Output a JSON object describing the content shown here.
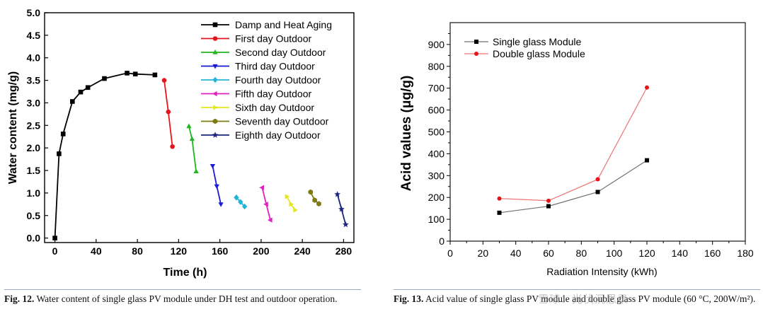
{
  "chart_data": [
    {
      "type": "line",
      "xlabel": "Time  (h)",
      "ylabel": "Water content  (mg/g)",
      "xlim": [
        -10,
        290
      ],
      "ylim": [
        -0.1,
        5.0
      ],
      "xticks": [
        "0",
        "40",
        "80",
        "120",
        "160",
        "200",
        "240",
        "280"
      ],
      "yticks": [
        "0.0",
        "0.5",
        "1.0",
        "1.5",
        "2.0",
        "2.5",
        "3.0",
        "3.5",
        "4.0",
        "4.5",
        "5.0"
      ],
      "legend_position": "top-right",
      "series": [
        {
          "name": "Damp and Heat Aging",
          "color": "#000000",
          "marker": "square",
          "x": [
            0,
            4,
            8,
            17,
            25,
            32,
            48,
            70,
            78,
            97
          ],
          "y": [
            0.0,
            1.87,
            2.31,
            3.03,
            3.24,
            3.34,
            3.54,
            3.66,
            3.64,
            3.62
          ]
        },
        {
          "name": "First day Outdoor",
          "color": "#e8141b",
          "marker": "circle",
          "x": [
            106,
            110,
            114
          ],
          "y": [
            3.5,
            2.8,
            2.03
          ]
        },
        {
          "name": "Second day Outdoor",
          "color": "#1fb61f",
          "marker": "triangle-up",
          "x": [
            130,
            133,
            137
          ],
          "y": [
            2.48,
            2.2,
            1.48
          ]
        },
        {
          "name": "Third day Outdoor",
          "color": "#1a1ad8",
          "marker": "triangle-down",
          "x": [
            153,
            157,
            161
          ],
          "y": [
            1.6,
            1.15,
            0.75
          ]
        },
        {
          "name": "Fourth day Outdoor",
          "color": "#22b4d8",
          "marker": "diamond",
          "x": [
            176,
            180,
            184
          ],
          "y": [
            0.9,
            0.8,
            0.7
          ]
        },
        {
          "name": "Fifth day Outdoor",
          "color": "#e020c0",
          "marker": "triangle-left",
          "x": [
            201,
            205,
            209
          ],
          "y": [
            1.12,
            0.75,
            0.4
          ]
        },
        {
          "name": "Sixth day Outdoor",
          "color": "#e6e61c",
          "marker": "triangle-right",
          "x": [
            225,
            229,
            233
          ],
          "y": [
            0.92,
            0.75,
            0.62
          ]
        },
        {
          "name": "Seventh day Outdoor",
          "color": "#7b7b12",
          "marker": "hexagon",
          "x": [
            248,
            252,
            256
          ],
          "y": [
            1.02,
            0.84,
            0.76
          ]
        },
        {
          "name": "Eighth day Outdoor",
          "color": "#1a237e",
          "marker": "star",
          "x": [
            274,
            278,
            282
          ],
          "y": [
            0.97,
            0.64,
            0.3
          ]
        }
      ]
    },
    {
      "type": "line",
      "xlabel": "Radiation Intensity (kWh)",
      "ylabel": "Acid values (μg/g)",
      "xlim": [
        0,
        180
      ],
      "ylim": [
        0,
        1000
      ],
      "xticks": [
        "0",
        "20",
        "40",
        "60",
        "80",
        "100",
        "120",
        "140",
        "160",
        "180"
      ],
      "yticks": [
        "0",
        "100",
        "200",
        "300",
        "400",
        "500",
        "600",
        "700",
        "800",
        "900"
      ],
      "legend_position": "top-left",
      "series": [
        {
          "name": "Single glass Module",
          "color": "#000000",
          "line_color": "#707070",
          "marker": "square",
          "x": [
            30,
            60,
            90,
            120
          ],
          "y": [
            130,
            160,
            225,
            370
          ]
        },
        {
          "name": "Double glass Module",
          "color": "#e8141b",
          "line_color": "#f07070",
          "marker": "circle",
          "x": [
            30,
            60,
            90,
            120
          ],
          "y": [
            195,
            185,
            283,
            703
          ]
        }
      ]
    }
  ],
  "captions": {
    "fig12_label": "Fig. 12.",
    "fig12_text": "Water content of single glass PV module under DH test and outdoor operation.",
    "fig13_label": "Fig. 13.",
    "fig13_text": "Acid value of single glass PV module and double glass PV module (60 °C, 200W/m²)."
  },
  "watermark": "雪球：光伏沉思录"
}
